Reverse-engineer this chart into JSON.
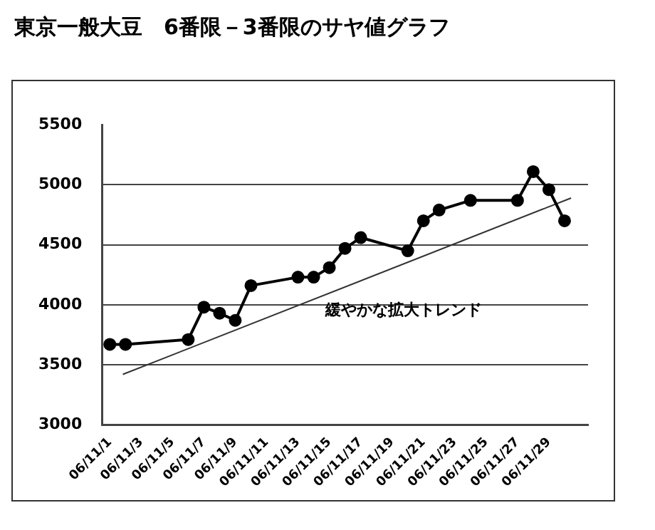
{
  "chart_data": {
    "type": "line",
    "title": "東京一般大豆　6番限－3番限のサヤ値グラフ",
    "x": [
      "--11-01",
      "--11-02",
      "--11-06",
      "--11-07",
      "--11-08",
      "--11-09",
      "--11-10",
      "--11-13",
      "--11-14",
      "--11-15",
      "--11-16",
      "--11-17",
      "--11-20",
      "--11-21",
      "--11-22",
      "--11-24",
      "--11-27",
      "--11-28",
      "--11-29",
      "--11-30"
    ],
    "series": [
      {
        "color": "#000000",
        "marker": "circle",
        "values": [
          3670,
          3670,
          3710,
          3980,
          3930,
          3870,
          4160,
          4230,
          4230,
          4310,
          4470,
          4560,
          4450,
          4700,
          4790,
          4870,
          4870,
          5110,
          4960,
          4700
        ]
      },
      {
        "type": "line",
        "color": "#333333",
        "marker": "none",
        "x": [
          "--11-01T20:00",
          "--11-30T10:00"
        ],
        "values": [
          3420,
          4890
        ]
      }
    ],
    "xlim": [
      "--10-31T12:00",
      "--12-01T12:00"
    ],
    "xticks": [
      {
        "value": "--11-01",
        "label": "06/11/1"
      },
      {
        "value": "--11-03",
        "label": "06/11/3"
      },
      {
        "value": "--11-05",
        "label": "06/11/5"
      },
      {
        "value": "--11-07",
        "label": "06/11/7"
      },
      {
        "value": "--11-09",
        "label": "06/11/9"
      },
      {
        "value": "--11-11",
        "label": "06/11/11"
      },
      {
        "value": "--11-13",
        "label": "06/11/13"
      },
      {
        "value": "--11-15",
        "label": "06/11/15"
      },
      {
        "value": "--11-17",
        "label": "06/11/17"
      },
      {
        "value": "--11-19",
        "label": "06/11/19"
      },
      {
        "value": "--11-21",
        "label": "06/11/21"
      },
      {
        "value": "--11-23",
        "label": "06/11/23"
      },
      {
        "value": "--11-25",
        "label": "06/11/25"
      },
      {
        "value": "--11-27",
        "label": "06/11/27"
      },
      {
        "value": "--11-29",
        "label": "06/11/29"
      }
    ],
    "ylim": [
      3000,
      5500
    ],
    "yticks": [
      3000,
      3500,
      4000,
      4500,
      5000,
      5500
    ],
    "grid": "y",
    "legend": false,
    "annotations": [
      "緩やかな拡大トレンド"
    ]
  }
}
